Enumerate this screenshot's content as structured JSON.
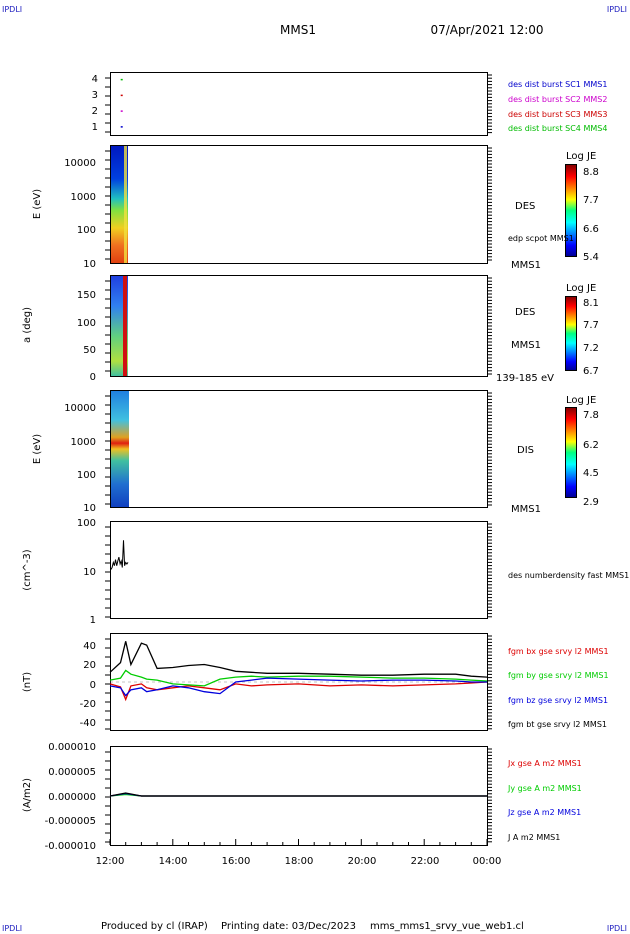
{
  "header": {
    "corner_tag": "IPDLI",
    "spacecraft": "MMS1",
    "date_time": "07/Apr/2021 12:00"
  },
  "footer": {
    "produced_by": "Produced by cl (IRAP)",
    "printing_date": "Printing date: 03/Dec/2023",
    "filename": "mms_mms1_srvy_vue_web1.cl"
  },
  "colors": {
    "sc1": "#0000cc",
    "sc2": "#cc00cc",
    "sc3": "#cc0000",
    "sc4": "#00bb00",
    "bx": "#dd0000",
    "by": "#00cc00",
    "bz": "#0000dd",
    "bt": "#000000"
  },
  "chart_data": [
    {
      "type": "scatter",
      "panel": "availability",
      "x_range": [
        "12:00",
        "00:00"
      ],
      "ylim": [
        0.5,
        4.5
      ],
      "ticks": [
        "1",
        "2",
        "3",
        "4"
      ],
      "series": [
        {
          "name": "des dist burst SC1 MMS1",
          "y": 1,
          "x": [
            "12:30"
          ]
        },
        {
          "name": "des dist burst SC2 MMS2",
          "y": 2,
          "x": [
            "12:30"
          ]
        },
        {
          "name": "des dist burst SC3 MMS3",
          "y": 3,
          "x": [
            "12:30"
          ]
        },
        {
          "name": "des dist burst SC4 MMS4",
          "y": 4,
          "x": [
            "12:30"
          ]
        }
      ]
    },
    {
      "type": "heatmap",
      "panel": "des-energy",
      "ylabel": "E (eV)",
      "yscale": "log",
      "ylim": [
        10,
        30000
      ],
      "ticks": [
        "10",
        "100",
        "1000",
        "10000"
      ],
      "label": "DES",
      "sublabel": "MMS1",
      "overlay_label": "edp scpot MMS1",
      "colorbar": {
        "title": "Log JE",
        "ticks": [
          "8.8",
          "7.7",
          "6.6",
          "5.4"
        ]
      },
      "data_interval": [
        "12:00",
        "12:35"
      ]
    },
    {
      "type": "heatmap",
      "panel": "des-pitch",
      "ylabel": "a (deg)",
      "ylim": [
        0,
        180
      ],
      "ticks": [
        "0",
        "50",
        "100",
        "150"
      ],
      "label": "DES",
      "sublabel": "MMS1",
      "energy_range": "139-185 eV",
      "colorbar": {
        "title": "Log JE",
        "ticks": [
          "8.1",
          "7.7",
          "7.2",
          "6.7"
        ]
      },
      "data_interval": [
        "12:00",
        "12:35"
      ]
    },
    {
      "type": "heatmap",
      "panel": "dis-energy",
      "ylabel": "E (eV)",
      "yscale": "log",
      "ylim": [
        10,
        30000
      ],
      "ticks": [
        "10",
        "100",
        "1000",
        "10000"
      ],
      "label": "DIS",
      "sublabel": "MMS1",
      "colorbar": {
        "title": "Log JE",
        "ticks": [
          "7.8",
          "6.2",
          "4.5",
          "2.9"
        ]
      },
      "data_interval": [
        "12:00",
        "12:35"
      ]
    },
    {
      "type": "line",
      "panel": "density",
      "ylabel": "(cm^-3)",
      "yscale": "log",
      "ylim": [
        1,
        100
      ],
      "ticks": [
        "1",
        "10",
        "100"
      ],
      "series": [
        {
          "name": "des numberdensity fast MMS1",
          "x": [
            "12:00",
            "12:05",
            "12:08",
            "12:10",
            "12:12",
            "12:15",
            "12:18",
            "12:20",
            "12:22",
            "12:25",
            "12:27",
            "12:29",
            "12:30",
            "12:32",
            "12:33",
            "12:35"
          ],
          "y": [
            10,
            11,
            14,
            12,
            16,
            12,
            15,
            18,
            13,
            15,
            11,
            40,
            12,
            14,
            13,
            14
          ]
        }
      ]
    },
    {
      "type": "line",
      "panel": "magnetic-field",
      "ylabel": "(nT)",
      "ylim": [
        -50,
        50
      ],
      "ticks": [
        "-40",
        "-20",
        "0",
        "20",
        "40"
      ],
      "series": [
        {
          "name": "fgm bx gse srvy l2 MMS1",
          "x": [
            "12:00",
            "12:20",
            "12:30",
            "12:40",
            "13:00",
            "13:10",
            "13:30",
            "14:00",
            "14:30",
            "15:00",
            "15:30",
            "16:00",
            "16:30",
            "17:00",
            "18:00",
            "19:00",
            "20:00",
            "21:00",
            "22:00",
            "23:00",
            "23:30",
            "00:00"
          ],
          "y": [
            -2,
            -5,
            -18,
            -4,
            -2,
            -6,
            -8,
            -6,
            -4,
            -6,
            -8,
            -2,
            -4,
            -3,
            -2,
            -4,
            -3,
            -4,
            -3,
            -2,
            -1,
            0
          ]
        },
        {
          "name": "fgm by gse srvy l2 MMS1",
          "x": [
            "12:00",
            "12:20",
            "12:30",
            "12:40",
            "13:00",
            "13:10",
            "13:30",
            "14:00",
            "14:30",
            "15:00",
            "15:30",
            "16:00",
            "16:30",
            "17:00",
            "18:00",
            "19:00",
            "20:00",
            "21:00",
            "22:00",
            "23:00",
            "23:30",
            "00:00"
          ],
          "y": [
            2,
            4,
            12,
            8,
            5,
            3,
            2,
            -2,
            -3,
            -4,
            3,
            5,
            6,
            5,
            6,
            6,
            5,
            4,
            4,
            3,
            2,
            1
          ]
        },
        {
          "name": "fgm bz gse srvy l2 MMS1",
          "x": [
            "12:00",
            "12:20",
            "12:30",
            "12:40",
            "13:00",
            "13:10",
            "13:30",
            "14:00",
            "14:30",
            "15:00",
            "15:30",
            "16:00",
            "16:30",
            "17:00",
            "18:00",
            "19:00",
            "20:00",
            "21:00",
            "22:00",
            "23:00",
            "23:30",
            "00:00"
          ],
          "y": [
            -4,
            -6,
            -14,
            -8,
            -6,
            -10,
            -8,
            -4,
            -6,
            -10,
            -12,
            0,
            2,
            4,
            3,
            2,
            1,
            2,
            2,
            1,
            0,
            0
          ]
        },
        {
          "name": "fgm bt gse srvy l2 MMS1",
          "x": [
            "12:00",
            "12:20",
            "12:30",
            "12:40",
            "13:00",
            "13:10",
            "13:30",
            "14:00",
            "14:30",
            "15:00",
            "15:30",
            "16:00",
            "16:30",
            "17:00",
            "18:00",
            "19:00",
            "20:00",
            "21:00",
            "22:00",
            "23:00",
            "23:30",
            "00:00"
          ],
          "y": [
            10,
            20,
            42,
            18,
            40,
            38,
            14,
            15,
            17,
            18,
            15,
            11,
            10,
            9,
            9,
            8,
            7,
            7,
            8,
            8,
            6,
            5
          ]
        }
      ]
    },
    {
      "type": "line",
      "panel": "current-density",
      "ylabel": "(A/m2)",
      "ylim": [
        -1e-05,
        1e-05
      ],
      "ticks": [
        "-0.000010",
        "-0.000005",
        "0.000000",
        "0.000005",
        "0.000010"
      ],
      "x_ticks": [
        "12:00",
        "14:00",
        "16:00",
        "18:00",
        "20:00",
        "22:00",
        "00:00"
      ],
      "series": [
        {
          "name": "Jx gse A m2 MMS1",
          "x": [
            "12:00",
            "12:30",
            "13:00",
            "00:00"
          ],
          "y": [
            0,
            4e-07,
            0,
            0
          ]
        },
        {
          "name": "Jy gse A m2 MMS1",
          "x": [
            "12:00",
            "12:30",
            "13:00",
            "00:00"
          ],
          "y": [
            0,
            3e-07,
            0,
            0
          ]
        },
        {
          "name": "Jz gse A m2 MMS1",
          "x": [
            "12:00",
            "12:30",
            "13:00",
            "00:00"
          ],
          "y": [
            0,
            5e-07,
            0,
            0
          ]
        },
        {
          "name": "J A m2 MMS1",
          "x": [
            "12:00",
            "12:30",
            "13:00",
            "00:00"
          ],
          "y": [
            0,
            6e-07,
            0,
            0
          ]
        }
      ]
    }
  ]
}
